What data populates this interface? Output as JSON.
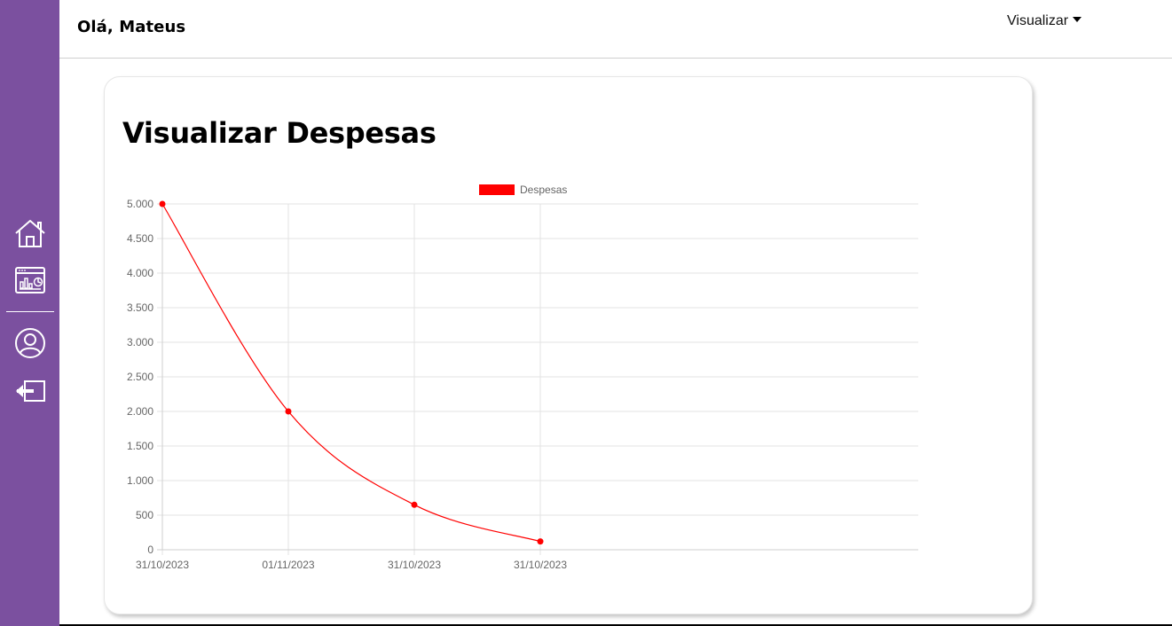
{
  "header": {
    "greeting": "Olá, Mateus",
    "menu_label": "Visualizar"
  },
  "sidebar": {
    "items": [
      {
        "name": "home",
        "icon": "home-icon"
      },
      {
        "name": "dashboard",
        "icon": "dashboard-chart-icon"
      },
      {
        "name": "profile",
        "icon": "user-icon"
      },
      {
        "name": "logout",
        "icon": "logout-icon"
      }
    ]
  },
  "colors": {
    "sidebar": "#7b509f",
    "series": "#ff0000"
  },
  "page": {
    "title": "Visualizar Despesas"
  },
  "chart_data": {
    "type": "line",
    "title": "",
    "xlabel": "",
    "ylabel": "",
    "categories": [
      "31/10/2023",
      "01/11/2023",
      "31/10/2023",
      "31/10/2023"
    ],
    "series": [
      {
        "name": "Despesas",
        "values": [
          5000,
          2000,
          650,
          120
        ],
        "color": "#ff0000"
      }
    ],
    "ylim": [
      0,
      5000
    ],
    "yticks": [
      0,
      500,
      1000,
      1500,
      2000,
      2500,
      3000,
      3500,
      4000,
      4500,
      5000
    ],
    "ytick_labels": [
      "0",
      "500",
      "1.000",
      "1.500",
      "2.000",
      "2.500",
      "3.000",
      "3.500",
      "4.000",
      "4.500",
      "5.000"
    ],
    "grid": true,
    "legend": "top-center"
  }
}
